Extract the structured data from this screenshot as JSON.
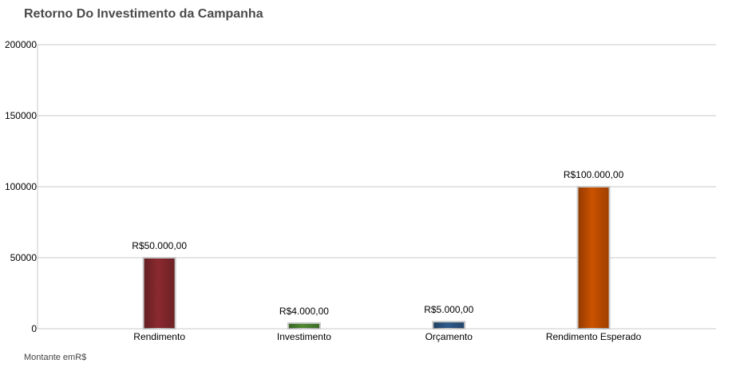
{
  "chart_data": {
    "type": "bar",
    "title": "Retorno Do Investimento da Campanha",
    "footnote": "Montante emR$",
    "categories": [
      "Rendimento",
      "Investimento",
      "Orçamento",
      "Rendimento Esperado"
    ],
    "values": [
      50000,
      4000,
      5000,
      100000
    ],
    "data_labels": [
      "R$50.000,00",
      "R$4.000,00",
      "R$5.000,00",
      "R$100.000,00"
    ],
    "bar_colors": [
      "#8b2a2f",
      "#4f8a32",
      "#2e5a8a",
      "#cc5200"
    ],
    "ylim": [
      0,
      200000
    ],
    "yticks": [
      0,
      50000,
      100000,
      150000,
      200000
    ],
    "ytick_labels": [
      "0",
      "50000",
      "100000",
      "150000",
      "200000"
    ],
    "grid": true,
    "legend": "none"
  }
}
